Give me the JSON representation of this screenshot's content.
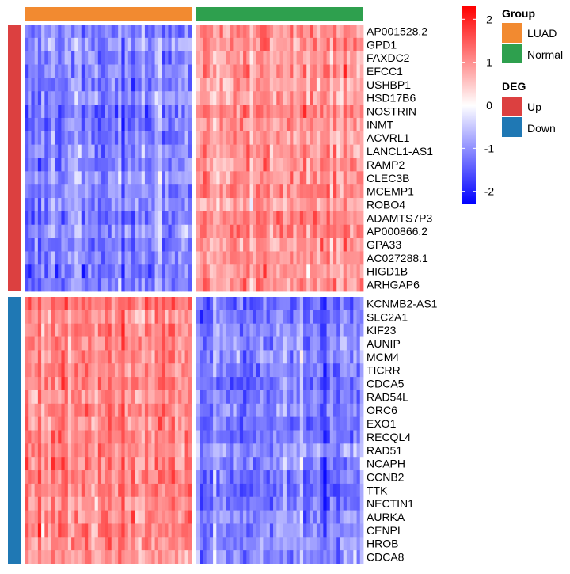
{
  "chart_data": {
    "type": "heatmap",
    "title": "",
    "groups": [
      {
        "name": "LUAD",
        "color": "#F28A30",
        "n_samples": 50
      },
      {
        "name": "Normal",
        "color": "#2EA04E",
        "n_samples": 50
      }
    ],
    "deg_blocks": [
      {
        "name": "Up",
        "color": "#DC4040",
        "genes": [
          "AP001528.2",
          "GPD1",
          "FAXDC2",
          "EFCC1",
          "USHBP1",
          "HSD17B6",
          "NOSTRIN",
          "INMT",
          "ACVRL1",
          "LANCL1-AS1",
          "RAMP2",
          "CLEC3B",
          "MCEMP1",
          "ROBO4",
          "ADAMTS7P3",
          "AP000866.2",
          "GPA33",
          "AC027288.1",
          "HIGD1B",
          "ARHGAP6"
        ],
        "mean_by_group": {
          "LUAD": -1.1,
          "Normal": 1.0
        }
      },
      {
        "name": "Down",
        "color": "#1F78B4",
        "genes": [
          "KCNMB2-AS1",
          "SLC2A1",
          "KIF23",
          "AUNIP",
          "MCM4",
          "TICRR",
          "CDCA5",
          "RAD54L",
          "ORC6",
          "EXO1",
          "RECQL4",
          "RAD51",
          "NCAPH",
          "CCNB2",
          "TTK",
          "NECTIN1",
          "AURKA",
          "CENPI",
          "HROB",
          "CDCA8"
        ],
        "mean_by_group": {
          "LUAD": 1.1,
          "Normal": -1.1
        }
      }
    ],
    "color_scale": {
      "min": -2.3,
      "max": 2.3,
      "low_color": "#0000FF",
      "mid_color": "#FFFFFF",
      "high_color": "#FF0000",
      "ticks": [
        2,
        1,
        0,
        -1,
        -2
      ],
      "tick_labels": [
        "2",
        "1",
        "0",
        "-1",
        "-2"
      ]
    },
    "legend": {
      "group_title": "Group",
      "group_items": [
        "LUAD",
        "Normal"
      ],
      "deg_title": "DEG",
      "deg_items": [
        "Up",
        "Down"
      ],
      "placement": "right"
    }
  }
}
